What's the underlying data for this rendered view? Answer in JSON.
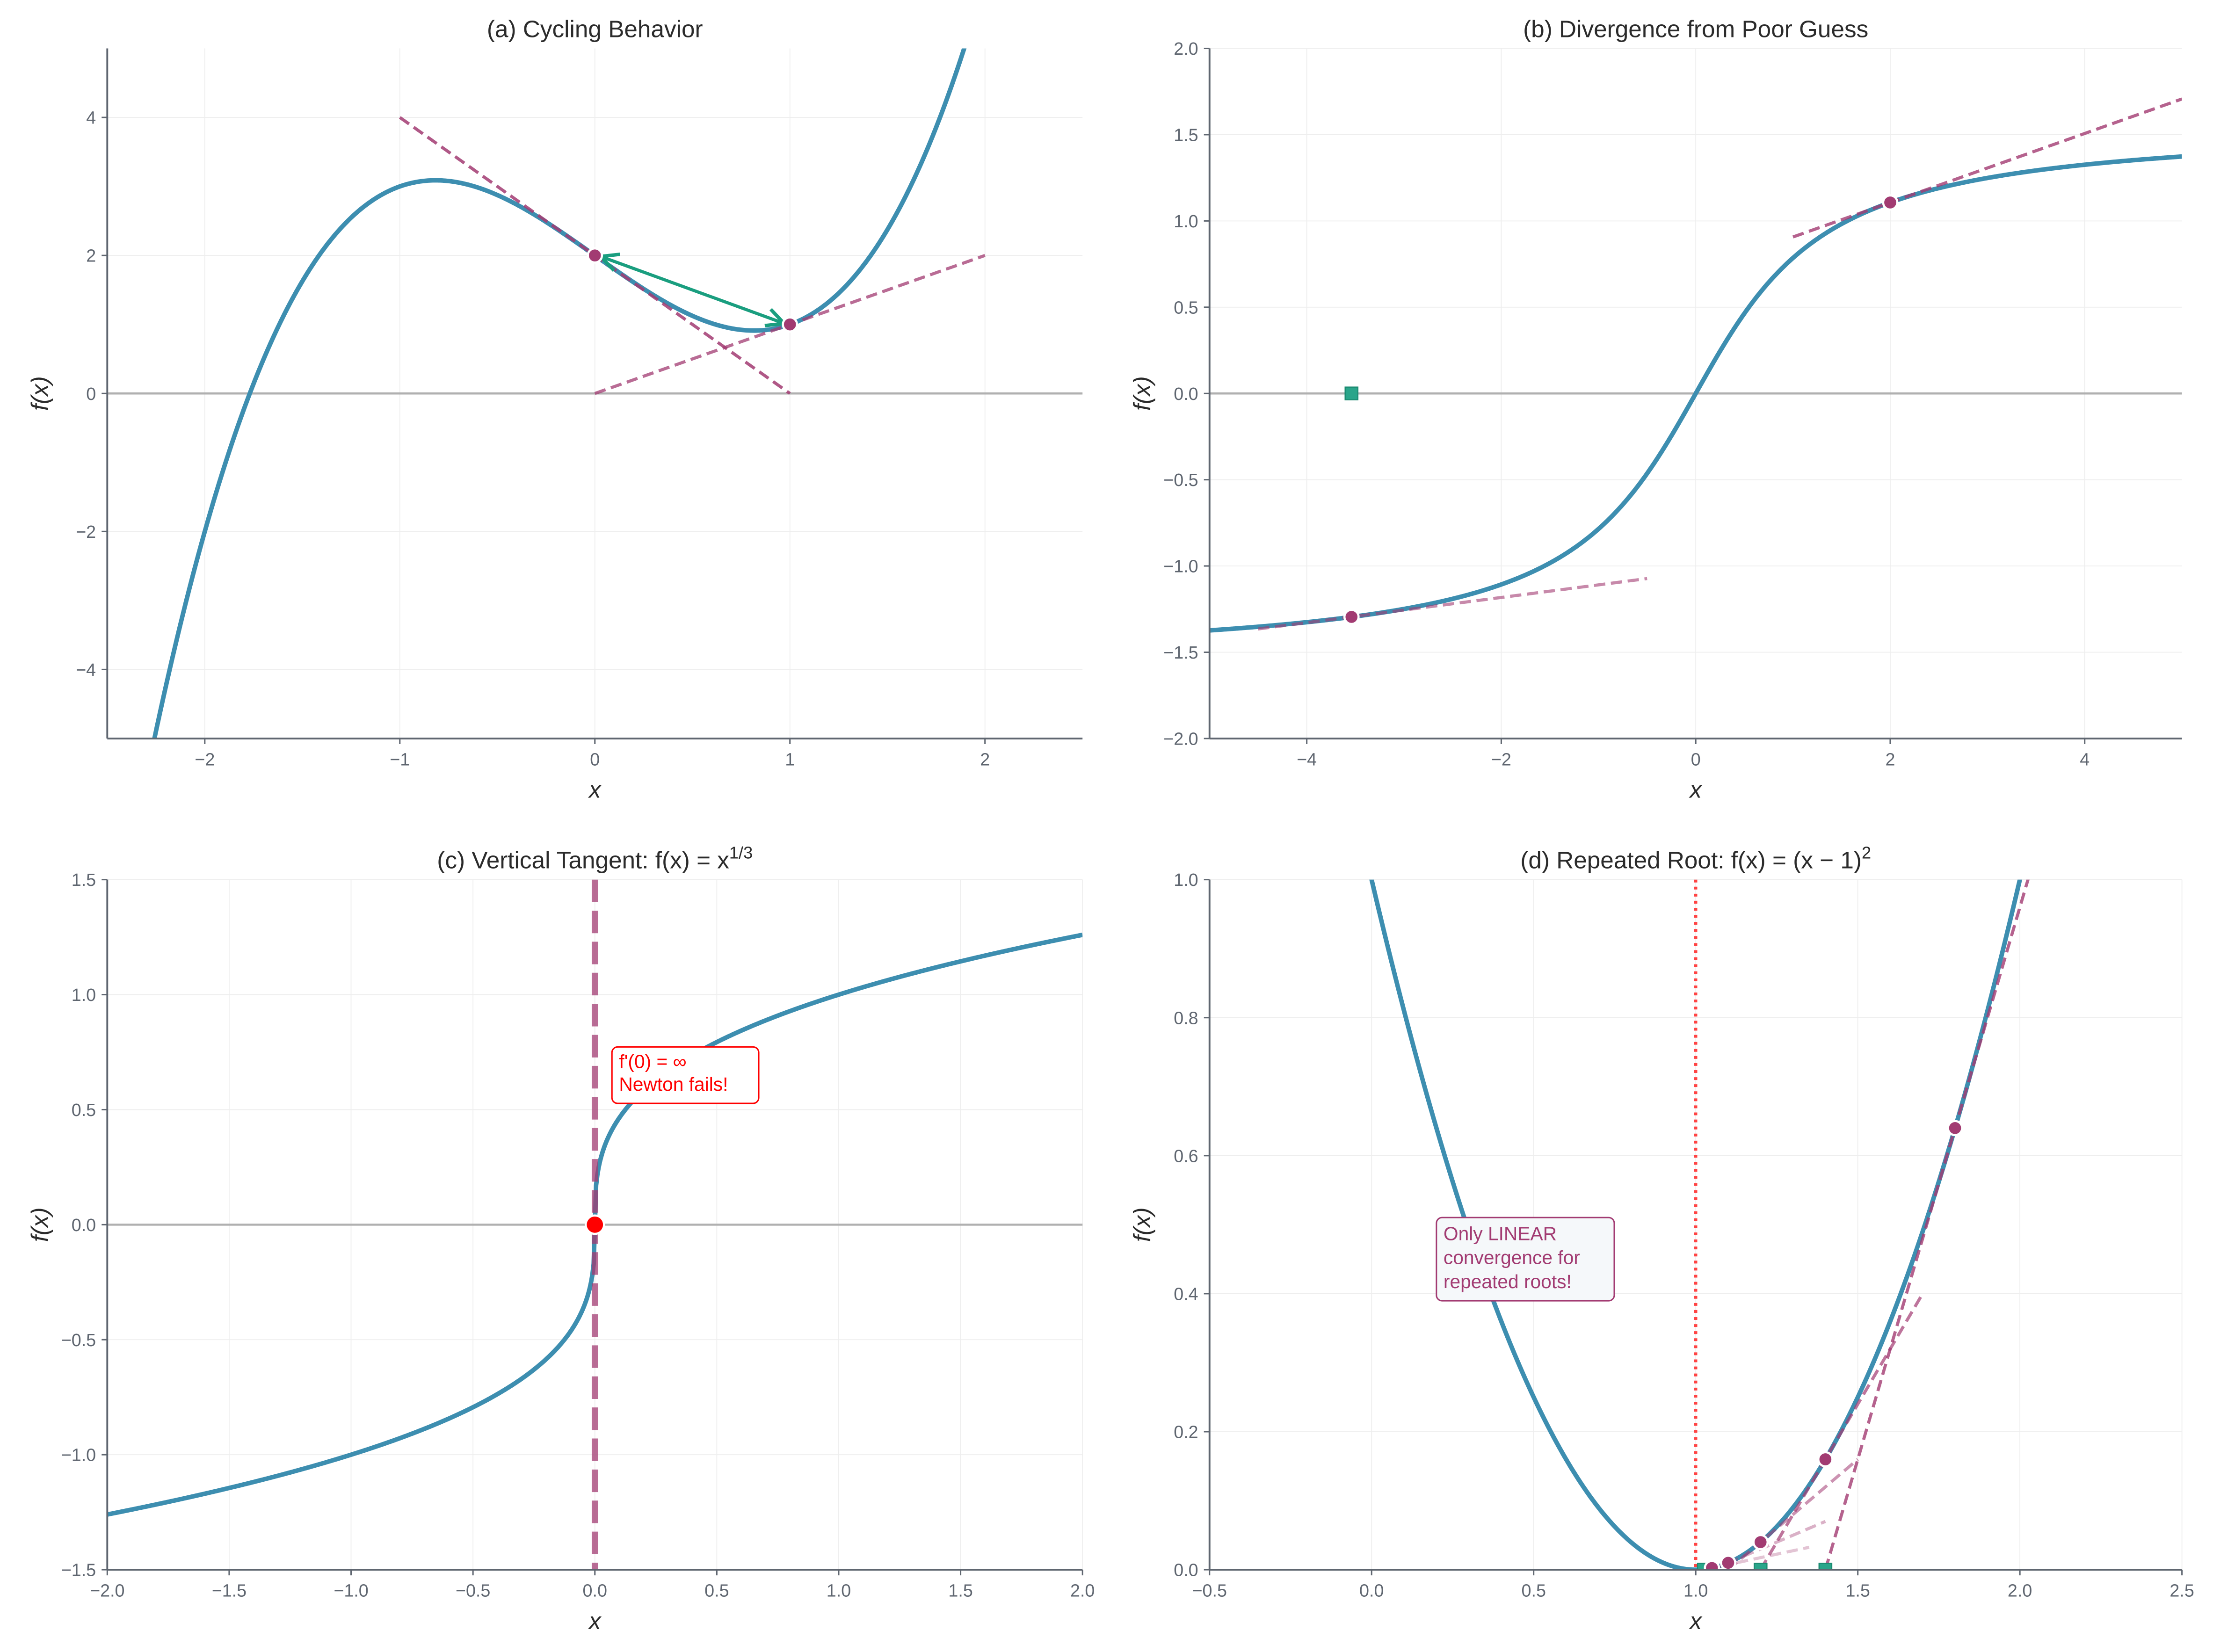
{
  "colors": {
    "curve": "#3d8eb0",
    "tangent": "#a23b72",
    "point": "#a23b72",
    "arrow": "#1a9e7f",
    "root_marker": "#2aa58a",
    "fail": "#ff0000"
  },
  "chart_data": [
    {
      "id": "a",
      "type": "line",
      "title": "(a) Cycling Behavior",
      "title_sup": "",
      "xlabel": "x",
      "ylabel": "f(x)",
      "xlim": [
        -2.5,
        2.5
      ],
      "ylim": [
        -5,
        5
      ],
      "xticks": [
        -2,
        -1,
        0,
        1,
        2
      ],
      "xtick_labels": [
        "−2",
        "−1",
        "0",
        "1",
        "2"
      ],
      "yticks": [
        -4,
        -2,
        0,
        2,
        4
      ],
      "ytick_labels": [
        "−4",
        "−2",
        "0",
        "2",
        "4"
      ],
      "function": "x^3 - 2x + 2",
      "points": [
        {
          "x": 0,
          "y": 2
        },
        {
          "x": 1,
          "y": 1
        }
      ],
      "tangents": [
        {
          "x0": -1,
          "y0": 4,
          "x1": 1,
          "y1": 0,
          "alpha": 0.85
        },
        {
          "x0": 0,
          "y0": 0,
          "x1": 2,
          "y1": 2,
          "alpha": 0.75
        }
      ],
      "arrows": [
        {
          "from": [
            0.03,
            1.985
          ],
          "to": [
            0.97,
            1.015
          ]
        },
        {
          "from": [
            0.97,
            1.015
          ],
          "to": [
            0.03,
            1.985
          ]
        }
      ],
      "roots": []
    },
    {
      "id": "b",
      "type": "line",
      "title": "(b) Divergence from Poor Guess",
      "title_sup": "",
      "xlabel": "x",
      "ylabel": "f(x)",
      "xlim": [
        -5,
        5
      ],
      "ylim": [
        -2,
        2
      ],
      "xticks": [
        -4,
        -2,
        0,
        2,
        4
      ],
      "xtick_labels": [
        "−4",
        "−2",
        "0",
        "2",
        "4"
      ],
      "yticks": [
        -2,
        -1.5,
        -1,
        -0.5,
        0,
        0.5,
        1,
        1.5,
        2
      ],
      "ytick_labels": [
        "−2.0",
        "−1.5",
        "−1.0",
        "−0.5",
        "0.0",
        "0.5",
        "1.0",
        "1.5",
        "2.0"
      ],
      "function": "arctan(x)",
      "points": [
        {
          "x": 2,
          "y": 1.107
        },
        {
          "x": -3.54,
          "y": -1.295
        }
      ],
      "tangents": [
        {
          "x0": 1,
          "y0": 0.907,
          "x1": 5,
          "y1": 1.707,
          "alpha": 0.8
        },
        {
          "x0": -4.5,
          "y0": -1.365,
          "x1": -0.5,
          "y1": -1.073,
          "alpha": 0.6
        }
      ],
      "arrows": [],
      "roots": [
        {
          "x": -3.54,
          "y": 0
        }
      ]
    },
    {
      "id": "c",
      "type": "line",
      "title": "(c) Vertical Tangent: f(x) = x",
      "title_sup": "1/3",
      "xlabel": "x",
      "ylabel": "f(x)",
      "xlim": [
        -2,
        2
      ],
      "ylim": [
        -1.5,
        1.5
      ],
      "xticks": [
        -2,
        -1.5,
        -1,
        -0.5,
        0,
        0.5,
        1,
        1.5,
        2
      ],
      "xtick_labels": [
        "−2.0",
        "−1.5",
        "−1.0",
        "−0.5",
        "0.0",
        "0.5",
        "1.0",
        "1.5",
        "2.0"
      ],
      "yticks": [
        -1.5,
        -1,
        -0.5,
        0,
        0.5,
        1,
        1.5
      ],
      "ytick_labels": [
        "−1.5",
        "−1.0",
        "−0.5",
        "0.0",
        "0.5",
        "1.0",
        "1.5"
      ],
      "function": "cbrt(x)",
      "points": [],
      "vertical_tangent_x": 0,
      "fail_point": {
        "x": 0,
        "y": 0
      },
      "annotation": {
        "lines": [
          "f'(0) = ∞",
          "Newton fails!"
        ],
        "x": 0.07,
        "y": 0.65
      },
      "tangents": [],
      "arrows": [],
      "roots": []
    },
    {
      "id": "d",
      "type": "line",
      "title": "(d) Repeated Root: f(x) = (x − 1)",
      "title_sup": "2",
      "xlabel": "x",
      "ylabel": "f(x)",
      "xlim": [
        -0.5,
        2.5
      ],
      "ylim": [
        0,
        1
      ],
      "xticks": [
        -0.5,
        0,
        0.5,
        1,
        1.5,
        2,
        2.5
      ],
      "xtick_labels": [
        "−0.5",
        "0.0",
        "0.5",
        "1.0",
        "1.5",
        "2.0",
        "2.5"
      ],
      "yticks": [
        0,
        0.2,
        0.4,
        0.6,
        0.8,
        1
      ],
      "ytick_labels": [
        "0.0",
        "0.2",
        "0.4",
        "0.6",
        "0.8",
        "1.0"
      ],
      "function": "(x-1)^2",
      "root_line_x": 1,
      "points": [
        {
          "x": 1.8,
          "y": 0.64
        },
        {
          "x": 1.4,
          "y": 0.16
        },
        {
          "x": 1.2,
          "y": 0.04
        },
        {
          "x": 1.1,
          "y": 0.01
        },
        {
          "x": 1.05,
          "y": 0.0025
        }
      ],
      "tangents": [
        {
          "x0": 1.4,
          "y0": 0,
          "x1": 2.1,
          "y1": 1.12,
          "alpha": 0.8
        },
        {
          "x0": 1.2,
          "y0": 0,
          "x1": 1.7,
          "y1": 0.4,
          "alpha": 0.7
        },
        {
          "x0": 1.1,
          "y0": 0,
          "x1": 1.5,
          "y1": 0.16,
          "alpha": 0.55
        },
        {
          "x0": 1.05,
          "y0": 0,
          "x1": 1.4,
          "y1": 0.07,
          "alpha": 0.4
        },
        {
          "x0": 1.025,
          "y0": 0,
          "x1": 1.35,
          "y1": 0.0325,
          "alpha": 0.3
        }
      ],
      "roots": [
        {
          "x": 1.4,
          "y": 0
        },
        {
          "x": 1.2,
          "y": 0
        },
        {
          "x": 1.025,
          "y": 0
        }
      ],
      "annotation": {
        "lines": [
          "Only LINEAR",
          "convergence for",
          "repeated roots!"
        ],
        "x": 0.2,
        "y": 0.45
      },
      "arrows": []
    }
  ]
}
